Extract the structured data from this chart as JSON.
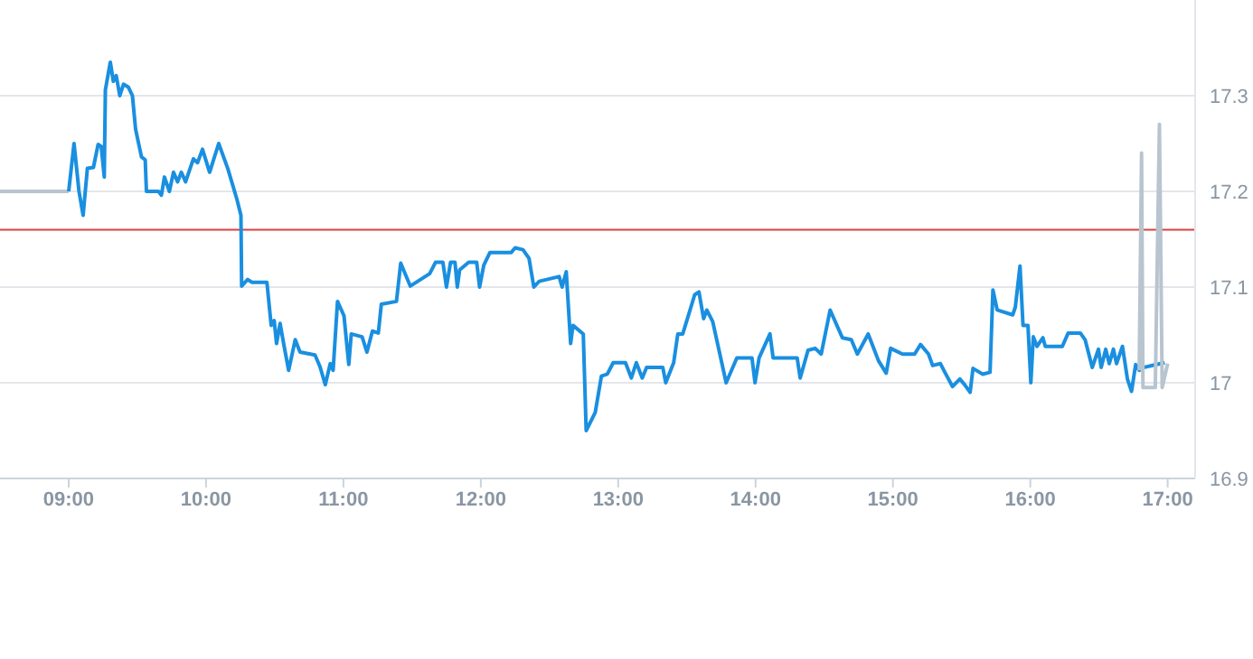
{
  "chart_data": {
    "type": "line",
    "xlim": [
      8.5,
      17.2
    ],
    "xticks": [
      {
        "value": 9,
        "label": "09:00"
      },
      {
        "value": 10,
        "label": "10:00"
      },
      {
        "value": 11,
        "label": "11:00"
      },
      {
        "value": 12,
        "label": "12:00"
      },
      {
        "value": 13,
        "label": "13:00"
      },
      {
        "value": 14,
        "label": "14:00"
      },
      {
        "value": 15,
        "label": "15:00"
      },
      {
        "value": 16,
        "label": "16:00"
      },
      {
        "value": 17,
        "label": "17:00"
      }
    ],
    "ylim": [
      16.9,
      17.4
    ],
    "yticks": [
      16.9,
      17,
      17.1,
      17.2,
      17.3
    ],
    "grid": "y",
    "legend": false,
    "marker": "none",
    "line_style": "solid",
    "ref_lines": [
      {
        "axis": "y",
        "value": 17.16,
        "color": "#d94040"
      }
    ],
    "series": [
      {
        "color": "#b8c4cf",
        "x": [
          8.5,
          9.0
        ],
        "values": [
          17.2,
          17.2
        ]
      },
      {
        "color": "#1a8fe0",
        "x": [
          9.0,
          9.039,
          9.075,
          9.105,
          9.136,
          9.18,
          9.214,
          9.237,
          9.259,
          9.267,
          9.303,
          9.325,
          9.346,
          9.372,
          9.399,
          9.434,
          9.464,
          9.487,
          9.53,
          9.557,
          9.566,
          9.654,
          9.675,
          9.697,
          9.733,
          9.763,
          9.793,
          9.82,
          9.851,
          9.908,
          9.938,
          9.974,
          10.026,
          10.092,
          10.158,
          10.224,
          10.254,
          10.259,
          10.303,
          10.333,
          10.443,
          10.474,
          10.496,
          10.513,
          10.539,
          10.566,
          10.601,
          10.649,
          10.684,
          10.793,
          10.829,
          10.868,
          10.904,
          10.925,
          10.957,
          11.004,
          11.039,
          11.057,
          11.136,
          11.171,
          11.211,
          11.254,
          11.276,
          11.386,
          11.417,
          11.487,
          11.628,
          11.671,
          11.724,
          11.75,
          11.78,
          11.812,
          11.829,
          11.846,
          11.912,
          11.97,
          11.991,
          12.022,
          12.066,
          12.22,
          12.25,
          12.307,
          12.351,
          12.386,
          12.425,
          12.57,
          12.592,
          12.622,
          12.654,
          12.671,
          12.746,
          12.767,
          12.833,
          12.878,
          12.921,
          12.964,
          13.053,
          13.096,
          13.132,
          13.175,
          13.207,
          13.325,
          13.346,
          13.404,
          13.434,
          13.47,
          13.557,
          13.588,
          13.622,
          13.645,
          13.688,
          13.786,
          13.864,
          13.974,
          13.996,
          14.026,
          14.105,
          14.128,
          14.303,
          14.325,
          14.382,
          14.434,
          14.478,
          14.543,
          14.632,
          14.697,
          14.741,
          14.82,
          14.895,
          14.951,
          14.983,
          15.07,
          15.158,
          15.201,
          15.259,
          15.289,
          15.346,
          15.378,
          15.434,
          15.487,
          15.522,
          15.562,
          15.583,
          15.654,
          15.707,
          15.728,
          15.759,
          15.872,
          15.891,
          15.925,
          15.947,
          15.983,
          16.004,
          16.022,
          16.049,
          16.092,
          16.109,
          16.233,
          16.276,
          16.364,
          16.399,
          16.451,
          16.496,
          16.516,
          16.549,
          16.575,
          16.605,
          16.628,
          16.671,
          16.707,
          16.737,
          16.767,
          16.793,
          16.825,
          16.978
        ],
        "values": [
          17.2,
          17.25,
          17.2,
          17.175,
          17.224,
          17.225,
          17.249,
          17.247,
          17.215,
          17.306,
          17.335,
          17.315,
          17.321,
          17.3,
          17.312,
          17.309,
          17.3,
          17.265,
          17.236,
          17.233,
          17.2,
          17.2,
          17.196,
          17.215,
          17.2,
          17.22,
          17.21,
          17.22,
          17.21,
          17.234,
          17.23,
          17.244,
          17.22,
          17.25,
          17.224,
          17.192,
          17.175,
          17.101,
          17.108,
          17.105,
          17.105,
          17.06,
          17.065,
          17.041,
          17.062,
          17.04,
          17.013,
          17.045,
          17.032,
          17.029,
          17.017,
          16.998,
          17.02,
          17.013,
          17.085,
          17.07,
          17.019,
          17.051,
          17.048,
          17.032,
          17.054,
          17.052,
          17.082,
          17.085,
          17.125,
          17.101,
          17.114,
          17.126,
          17.126,
          17.1,
          17.126,
          17.126,
          17.1,
          17.118,
          17.126,
          17.126,
          17.1,
          17.123,
          17.136,
          17.136,
          17.141,
          17.139,
          17.13,
          17.1,
          17.106,
          17.111,
          17.1,
          17.116,
          17.041,
          17.06,
          17.051,
          16.95,
          16.969,
          17.007,
          17.009,
          17.021,
          17.021,
          17.005,
          17.021,
          17.005,
          17.016,
          17.016,
          17.0,
          17.021,
          17.051,
          17.051,
          17.092,
          17.095,
          17.067,
          17.076,
          17.064,
          17.0,
          17.026,
          17.026,
          17.0,
          17.026,
          17.051,
          17.026,
          17.026,
          17.005,
          17.034,
          17.036,
          17.03,
          17.076,
          17.047,
          17.045,
          17.03,
          17.051,
          17.023,
          17.01,
          17.036,
          17.03,
          17.03,
          17.04,
          17.03,
          17.018,
          17.02,
          17.011,
          16.996,
          17.004,
          16.998,
          16.99,
          17.015,
          17.009,
          17.011,
          17.097,
          17.076,
          17.071,
          17.079,
          17.122,
          17.06,
          17.06,
          17.0,
          17.048,
          17.038,
          17.047,
          17.038,
          17.038,
          17.052,
          17.052,
          17.045,
          17.016,
          17.035,
          17.016,
          17.035,
          17.02,
          17.035,
          17.02,
          17.038,
          17.004,
          16.991,
          17.019,
          17.013,
          17.016,
          17.021
        ]
      },
      {
        "color": "#b8c4cf",
        "x": [
          16.793,
          16.81,
          16.82,
          16.91,
          16.94,
          16.96,
          17.0
        ],
        "values": [
          17.013,
          17.24,
          16.995,
          16.995,
          17.27,
          16.995,
          17.02
        ]
      }
    ]
  }
}
